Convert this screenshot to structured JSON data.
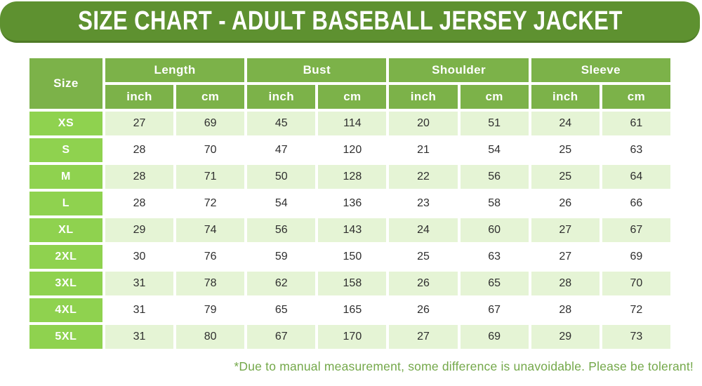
{
  "title": "SIZE CHART - ADULT BASEBALL JERSEY JACKET",
  "table": {
    "size_header": "Size",
    "groups": [
      {
        "label": "Length"
      },
      {
        "label": "Bust"
      },
      {
        "label": "Shoulder"
      },
      {
        "label": "Sleeve"
      }
    ],
    "unit_labels": [
      "inch",
      "cm",
      "inch",
      "cm",
      "inch",
      "cm",
      "inch",
      "cm"
    ],
    "rows": [
      {
        "size": "XS",
        "values": [
          27,
          69,
          45,
          114,
          20,
          51,
          24,
          61
        ]
      },
      {
        "size": "S",
        "values": [
          28,
          70,
          47,
          120,
          21,
          54,
          25,
          63
        ]
      },
      {
        "size": "M",
        "values": [
          28,
          71,
          50,
          128,
          22,
          56,
          25,
          64
        ]
      },
      {
        "size": "L",
        "values": [
          28,
          72,
          54,
          136,
          23,
          58,
          26,
          66
        ]
      },
      {
        "size": "XL",
        "values": [
          29,
          74,
          56,
          143,
          24,
          60,
          27,
          67
        ]
      },
      {
        "size": "2XL",
        "values": [
          30,
          76,
          59,
          150,
          25,
          63,
          27,
          69
        ]
      },
      {
        "size": "3XL",
        "values": [
          31,
          78,
          62,
          158,
          26,
          65,
          28,
          70
        ]
      },
      {
        "size": "4XL",
        "values": [
          31,
          79,
          65,
          165,
          26,
          67,
          28,
          72
        ]
      },
      {
        "size": "5XL",
        "values": [
          31,
          80,
          67,
          170,
          27,
          69,
          29,
          73
        ]
      }
    ]
  },
  "footnote": "*Due to manual measurement, some difference is unavoidable. Please be tolerant!",
  "colors": {
    "banner_green": "#5e9130",
    "banner_shadow": "#4e7a26",
    "header_green": "#7cb249",
    "size_green": "#8fd24f",
    "row_alt_green": "#e5f4d5",
    "row_white": "#ffffff",
    "text_dark": "#2f2f2f",
    "footnote_green": "#74a84a"
  },
  "chart_data": {
    "type": "table",
    "title": "SIZE CHART - ADULT BASEBALL JERSEY JACKET",
    "column_groups": [
      "Length",
      "Bust",
      "Shoulder",
      "Sleeve"
    ],
    "columns": [
      "Size",
      "Length (inch)",
      "Length (cm)",
      "Bust (inch)",
      "Bust (cm)",
      "Shoulder (inch)",
      "Shoulder (cm)",
      "Sleeve (inch)",
      "Sleeve (cm)"
    ],
    "rows": [
      [
        "XS",
        27,
        69,
        45,
        114,
        20,
        51,
        24,
        61
      ],
      [
        "S",
        28,
        70,
        47,
        120,
        21,
        54,
        25,
        63
      ],
      [
        "M",
        28,
        71,
        50,
        128,
        22,
        56,
        25,
        64
      ],
      [
        "L",
        28,
        72,
        54,
        136,
        23,
        58,
        26,
        66
      ],
      [
        "XL",
        29,
        74,
        56,
        143,
        24,
        60,
        27,
        67
      ],
      [
        "2XL",
        30,
        76,
        59,
        150,
        25,
        63,
        27,
        69
      ],
      [
        "3XL",
        31,
        78,
        62,
        158,
        26,
        65,
        28,
        70
      ],
      [
        "4XL",
        31,
        79,
        65,
        165,
        26,
        67,
        28,
        72
      ],
      [
        "5XL",
        31,
        80,
        67,
        170,
        27,
        69,
        29,
        73
      ]
    ],
    "footnote": "*Due to manual measurement, some difference is unavoidable. Please be tolerant!"
  }
}
